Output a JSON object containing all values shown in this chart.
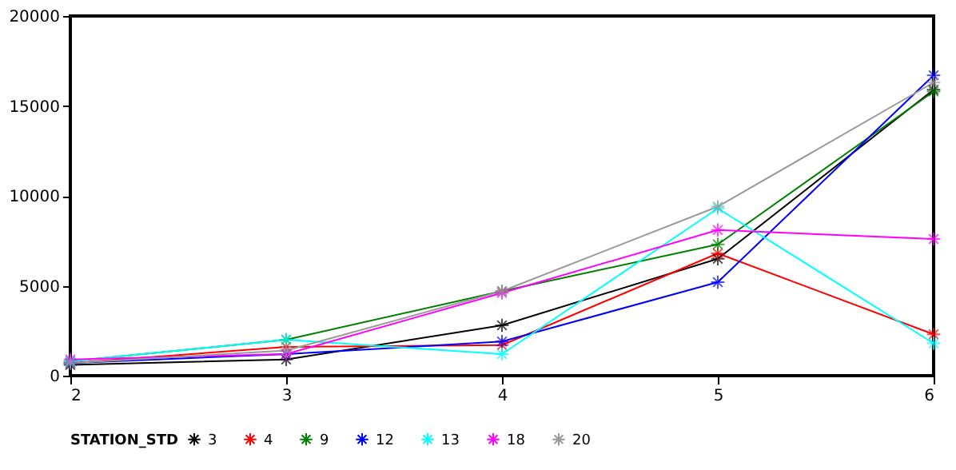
{
  "chart_data": {
    "type": "line",
    "x": [
      2,
      3,
      4,
      5,
      6
    ],
    "xlim": [
      2,
      6
    ],
    "xticks": [
      2,
      3,
      4,
      5,
      6
    ],
    "ylim": [
      0,
      20000
    ],
    "yticks": [
      0,
      5000,
      10000,
      15000,
      20000
    ],
    "legend_title": "STATION_STD",
    "legend": "bottom",
    "grid": false,
    "marker": "cross",
    "line_style": "solid",
    "series": [
      {
        "name": "3",
        "color": "#000000",
        "values": [
          600,
          900,
          2800,
          6500,
          15900
        ]
      },
      {
        "name": "4",
        "color": "#ff0000",
        "values": [
          700,
          1600,
          1700,
          6800,
          2300
        ]
      },
      {
        "name": "9",
        "color": "#008000",
        "values": [
          800,
          2000,
          4700,
          7300,
          15800
        ]
      },
      {
        "name": "12",
        "color": "#0000ff",
        "values": [
          700,
          1200,
          1900,
          5200,
          16700
        ]
      },
      {
        "name": "13",
        "color": "#00ffff",
        "values": [
          800,
          2000,
          1200,
          9300,
          1800
        ]
      },
      {
        "name": "18",
        "color": "#ff00ff",
        "values": [
          900,
          1200,
          4600,
          8100,
          7600
        ]
      },
      {
        "name": "20",
        "color": "#999999",
        "values": [
          700,
          1400,
          4700,
          9400,
          16300
        ]
      }
    ]
  }
}
